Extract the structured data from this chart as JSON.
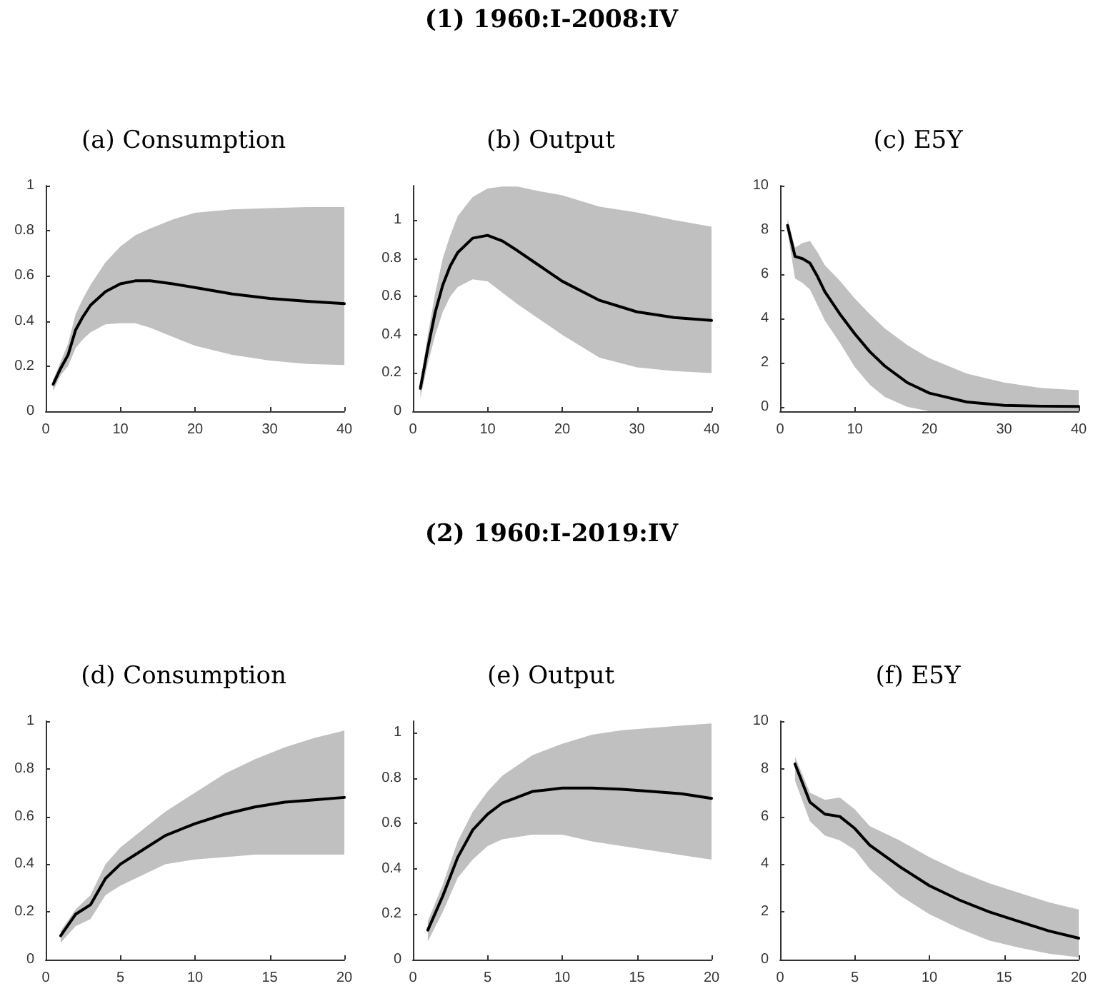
{
  "chart_data": [
    {
      "type": "line",
      "title": "(a) Consumption",
      "annotations": [
        "(1) 1960:I-2008:IV"
      ],
      "x": [
        1,
        2,
        3,
        4,
        5,
        6,
        8,
        10,
        12,
        14,
        17,
        20,
        25,
        30,
        35,
        40
      ],
      "xlim": [
        0,
        40
      ],
      "xticks": [
        0,
        10,
        20,
        30,
        40
      ],
      "ylim": [
        0,
        1
      ],
      "yticks": [
        0,
        0.2,
        0.4,
        0.6,
        0.8,
        1
      ],
      "grid": false,
      "series": [
        {
          "color": "#000000",
          "values": [
            0.12,
            0.19,
            0.25,
            0.36,
            0.42,
            0.47,
            0.53,
            0.565,
            0.578,
            0.578,
            0.565,
            0.548,
            0.52,
            0.5,
            0.487,
            0.477
          ],
          "lower": [
            0.09,
            0.16,
            0.2,
            0.28,
            0.32,
            0.35,
            0.385,
            0.39,
            0.39,
            0.37,
            0.33,
            0.29,
            0.25,
            0.225,
            0.21,
            0.205
          ],
          "upper": [
            0.14,
            0.22,
            0.3,
            0.43,
            0.5,
            0.56,
            0.66,
            0.73,
            0.78,
            0.81,
            0.85,
            0.88,
            0.895,
            0.9,
            0.905,
            0.905
          ]
        }
      ]
    },
    {
      "type": "line",
      "title": "(b) Output",
      "x": [
        1,
        2,
        3,
        4,
        5,
        6,
        8,
        10,
        12,
        14,
        17,
        20,
        25,
        30,
        35,
        40
      ],
      "xlim": [
        0,
        40
      ],
      "xticks": [
        0,
        10,
        20,
        30,
        40
      ],
      "ylim": [
        0,
        1.18
      ],
      "yticks": [
        0,
        0.2,
        0.4,
        0.6,
        0.8,
        1
      ],
      "grid": false,
      "series": [
        {
          "color": "#000000",
          "values": [
            0.12,
            0.33,
            0.52,
            0.66,
            0.76,
            0.83,
            0.905,
            0.92,
            0.89,
            0.84,
            0.76,
            0.68,
            0.58,
            0.52,
            0.49,
            0.475
          ],
          "lower": [
            0.07,
            0.25,
            0.4,
            0.52,
            0.6,
            0.65,
            0.69,
            0.68,
            0.62,
            0.56,
            0.48,
            0.4,
            0.28,
            0.23,
            0.21,
            0.2
          ],
          "upper": [
            0.15,
            0.4,
            0.62,
            0.8,
            0.92,
            1.02,
            1.12,
            1.165,
            1.175,
            1.175,
            1.15,
            1.13,
            1.07,
            1.04,
            1,
            0.965
          ]
        }
      ]
    },
    {
      "type": "line",
      "title": "(c) E5Y",
      "x": [
        1,
        2,
        3,
        4,
        5,
        6,
        8,
        10,
        12,
        14,
        17,
        20,
        25,
        30,
        35,
        40
      ],
      "xlim": [
        0,
        40
      ],
      "xticks": [
        0,
        10,
        20,
        30,
        40
      ],
      "ylim": [
        -0.2,
        10
      ],
      "yticks": [
        0,
        2,
        4,
        6,
        8,
        10
      ],
      "grid": false,
      "series": [
        {
          "color": "#000000",
          "values": [
            8.2,
            6.8,
            6.7,
            6.5,
            5.9,
            5.2,
            4.2,
            3.3,
            2.5,
            1.85,
            1.1,
            0.62,
            0.22,
            0.07,
            0.03,
            0.02
          ],
          "lower": [
            7.9,
            5.8,
            5.6,
            5.3,
            4.6,
            3.9,
            2.9,
            1.8,
            1,
            0.45,
            0,
            -0.2,
            -0.2,
            -0.2,
            -0.2,
            -0.2
          ],
          "upper": [
            8.5,
            7.2,
            7.4,
            7.5,
            7,
            6.4,
            5.7,
            4.9,
            4.2,
            3.55,
            2.8,
            2.2,
            1.5,
            1.1,
            0.85,
            0.75
          ]
        }
      ]
    },
    {
      "type": "line",
      "title": "(d) Consumption",
      "annotations": [
        "(2) 1960:I-2019:IV"
      ],
      "x": [
        1,
        2,
        3,
        4,
        5,
        6,
        8,
        10,
        12,
        14,
        16,
        18,
        20
      ],
      "xlim": [
        0,
        20
      ],
      "xticks": [
        0,
        5,
        10,
        15,
        20
      ],
      "ylim": [
        0,
        1
      ],
      "yticks": [
        0,
        0.2,
        0.4,
        0.6,
        0.8,
        1
      ],
      "grid": false,
      "series": [
        {
          "color": "#000000",
          "values": [
            0.1,
            0.19,
            0.23,
            0.34,
            0.4,
            0.44,
            0.52,
            0.57,
            0.61,
            0.64,
            0.66,
            0.67,
            0.68
          ],
          "lower": [
            0.07,
            0.14,
            0.17,
            0.27,
            0.31,
            0.34,
            0.4,
            0.42,
            0.43,
            0.44,
            0.44,
            0.44,
            0.44
          ],
          "upper": [
            0.12,
            0.21,
            0.27,
            0.4,
            0.47,
            0.52,
            0.62,
            0.7,
            0.78,
            0.84,
            0.89,
            0.93,
            0.96
          ]
        }
      ]
    },
    {
      "type": "line",
      "title": "(e) Output",
      "x": [
        1,
        2,
        3,
        4,
        5,
        6,
        8,
        10,
        12,
        14,
        16,
        18,
        20
      ],
      "xlim": [
        0,
        20
      ],
      "xticks": [
        0,
        5,
        10,
        15,
        20
      ],
      "ylim": [
        0,
        1.05
      ],
      "yticks": [
        0,
        0.2,
        0.4,
        0.6,
        0.8,
        1
      ],
      "grid": false,
      "series": [
        {
          "color": "#000000",
          "values": [
            0.13,
            0.28,
            0.45,
            0.57,
            0.64,
            0.69,
            0.74,
            0.755,
            0.755,
            0.75,
            0.74,
            0.73,
            0.71
          ],
          "lower": [
            0.08,
            0.21,
            0.36,
            0.44,
            0.5,
            0.53,
            0.55,
            0.55,
            0.52,
            0.5,
            0.48,
            0.46,
            0.44
          ],
          "upper": [
            0.17,
            0.33,
            0.52,
            0.65,
            0.74,
            0.81,
            0.9,
            0.95,
            0.99,
            1.01,
            1.02,
            1.03,
            1.04
          ]
        }
      ]
    },
    {
      "type": "line",
      "title": "(f) E5Y",
      "x": [
        1,
        2,
        3,
        4,
        5,
        6,
        8,
        10,
        12,
        14,
        16,
        18,
        20
      ],
      "xlim": [
        0,
        20
      ],
      "xticks": [
        0,
        5,
        10,
        15,
        20
      ],
      "ylim": [
        0,
        10
      ],
      "yticks": [
        0,
        2,
        4,
        6,
        8,
        10
      ],
      "grid": false,
      "series": [
        {
          "color": "#000000",
          "values": [
            8.2,
            6.6,
            6.1,
            6,
            5.5,
            4.8,
            3.9,
            3.1,
            2.5,
            2,
            1.6,
            1.2,
            0.9
          ],
          "lower": [
            7.5,
            5.8,
            5.2,
            5,
            4.6,
            3.8,
            2.7,
            1.9,
            1.3,
            0.8,
            0.5,
            0.25,
            0.1
          ],
          "upper": [
            8.5,
            7,
            6.7,
            6.8,
            6.3,
            5.6,
            5,
            4.3,
            3.7,
            3.2,
            2.8,
            2.4,
            2.1
          ]
        }
      ]
    }
  ]
}
